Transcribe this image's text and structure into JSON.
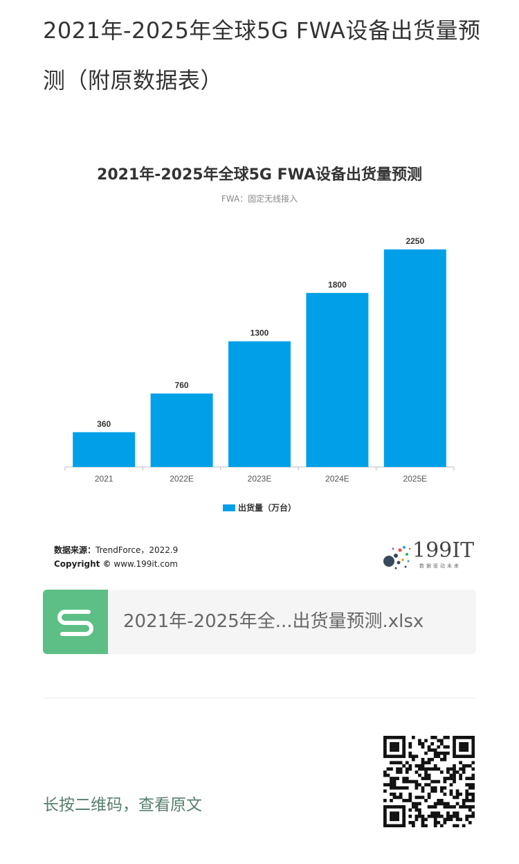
{
  "article": {
    "title": "2021年-2025年全球5G FWA设备出货量预测（附原数据表）"
  },
  "chart_data": {
    "type": "bar",
    "title": "2021年-2025年全球5G FWA设备出货量预测",
    "subtitle": "FWA：固定无线接入",
    "categories": [
      "2021",
      "2022E",
      "2023E",
      "2024E",
      "2025E"
    ],
    "series": [
      {
        "name": "出货量（万台）",
        "values": [
          360,
          760,
          1300,
          1800,
          2250
        ],
        "color": "#00a0e9"
      }
    ],
    "ylim": [
      0,
      2250
    ],
    "grid": false,
    "legend": "bottom"
  },
  "source": {
    "label": "数据来源：",
    "value": "TrendForce，2022.9",
    "copyright_label": "Copyright ©",
    "copyright_value": "www.199it.com"
  },
  "logo": {
    "text": "199IT",
    "tagline": "数据驱动未来"
  },
  "attachment": {
    "filename": "2021年-2025年全...出货量预测.xlsx",
    "icon": "spreadsheet-s-icon"
  },
  "footer": {
    "qr_hint": "长按二维码，查看原文",
    "qr_icon": "qr-code-icon"
  }
}
